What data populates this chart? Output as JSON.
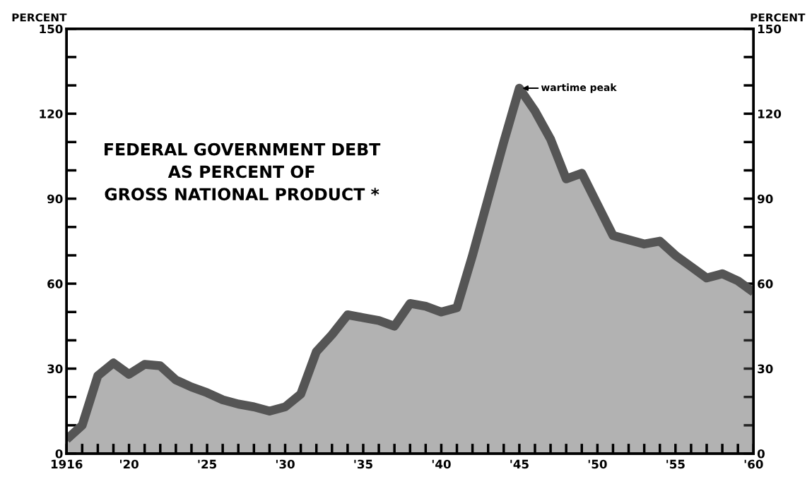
{
  "chart_data": {
    "type": "area",
    "title": "FEDERAL GOVERNMENT DEBT\nAS PERCENT OF\nGROSS NATIONAL PRODUCT *",
    "ylabel": "PERCENT",
    "y2label": "PERCENT",
    "x": [
      1916,
      1917,
      1918,
      1919,
      1920,
      1921,
      1922,
      1923,
      1924,
      1925,
      1926,
      1927,
      1928,
      1929,
      1930,
      1931,
      1932,
      1933,
      1934,
      1935,
      1936,
      1937,
      1938,
      1939,
      1940,
      1941,
      1942,
      1943,
      1944,
      1945,
      1946,
      1947,
      1948,
      1949,
      1950,
      1951,
      1952,
      1953,
      1954,
      1955,
      1956,
      1957,
      1958,
      1959,
      1960
    ],
    "series": [
      {
        "color": "#555555",
        "values": [
          5,
          10,
          27.5,
          32,
          28,
          31.5,
          31,
          26,
          23.5,
          21.5,
          19,
          17.5,
          16.5,
          15,
          16.5,
          21,
          36,
          42,
          49,
          48,
          47,
          45,
          53,
          52,
          50,
          51.5,
          70,
          90,
          110,
          129,
          121,
          111,
          97,
          99,
          88,
          77,
          75.5,
          74,
          75,
          70,
          66,
          62,
          63.5,
          61,
          57
        ]
      }
    ],
    "xlim": [
      1916,
      1960
    ],
    "xticks": [
      {
        "value": 1916,
        "label": "1916"
      },
      {
        "value": 1917,
        "label": null
      },
      {
        "value": 1918,
        "label": null
      },
      {
        "value": 1919,
        "label": null
      },
      {
        "value": 1920,
        "label": "'20"
      },
      {
        "value": 1921,
        "label": null
      },
      {
        "value": 1922,
        "label": null
      },
      {
        "value": 1923,
        "label": null
      },
      {
        "value": 1924,
        "label": null
      },
      {
        "value": 1925,
        "label": "'25"
      },
      {
        "value": 1926,
        "label": null
      },
      {
        "value": 1927,
        "label": null
      },
      {
        "value": 1928,
        "label": null
      },
      {
        "value": 1929,
        "label": null
      },
      {
        "value": 1930,
        "label": "'30"
      },
      {
        "value": 1931,
        "label": null
      },
      {
        "value": 1932,
        "label": null
      },
      {
        "value": 1933,
        "label": null
      },
      {
        "value": 1934,
        "label": null
      },
      {
        "value": 1935,
        "label": "'35"
      },
      {
        "value": 1936,
        "label": null
      },
      {
        "value": 1937,
        "label": null
      },
      {
        "value": 1938,
        "label": null
      },
      {
        "value": 1939,
        "label": null
      },
      {
        "value": 1940,
        "label": "'40"
      },
      {
        "value": 1941,
        "label": null
      },
      {
        "value": 1942,
        "label": null
      },
      {
        "value": 1943,
        "label": null
      },
      {
        "value": 1944,
        "label": null
      },
      {
        "value": 1945,
        "label": "'45"
      },
      {
        "value": 1946,
        "label": null
      },
      {
        "value": 1947,
        "label": null
      },
      {
        "value": 1948,
        "label": null
      },
      {
        "value": 1949,
        "label": null
      },
      {
        "value": 1950,
        "label": "'50"
      },
      {
        "value": 1951,
        "label": null
      },
      {
        "value": 1952,
        "label": null
      },
      {
        "value": 1953,
        "label": null
      },
      {
        "value": 1954,
        "label": null
      },
      {
        "value": 1955,
        "label": "'55"
      },
      {
        "value": 1956,
        "label": null
      },
      {
        "value": 1957,
        "label": null
      },
      {
        "value": 1958,
        "label": null
      },
      {
        "value": 1959,
        "label": null
      },
      {
        "value": 1960,
        "label": "'60"
      }
    ],
    "ylim": [
      0,
      150
    ],
    "yticks": [
      0,
      {
        "value": 10,
        "label": null
      },
      {
        "value": 20,
        "label": null
      },
      30,
      {
        "value": 40,
        "label": null
      },
      {
        "value": 50,
        "label": null
      },
      60,
      {
        "value": 70,
        "label": null
      },
      {
        "value": 80,
        "label": null
      },
      90,
      {
        "value": 100,
        "label": null
      },
      {
        "value": 110,
        "label": null
      },
      120,
      {
        "value": 130,
        "label": null
      },
      {
        "value": 140,
        "label": null
      },
      150
    ],
    "y2lim": [
      0,
      150
    ],
    "y2ticks": [
      0,
      {
        "value": 10,
        "label": null
      },
      {
        "value": 20,
        "label": null
      },
      30,
      {
        "value": 40,
        "label": null
      },
      {
        "value": 50,
        "label": null
      },
      60,
      {
        "value": 70,
        "label": null
      },
      {
        "value": 80,
        "label": null
      },
      90,
      {
        "value": 100,
        "label": null
      },
      {
        "value": 110,
        "label": null
      },
      120,
      {
        "value": 130,
        "label": null
      },
      {
        "value": 140,
        "label": null
      },
      150
    ],
    "annotations": [
      {
        "text": "wartime peak",
        "x": 1945,
        "y": 129
      }
    ],
    "grid": false,
    "legend": false
  }
}
